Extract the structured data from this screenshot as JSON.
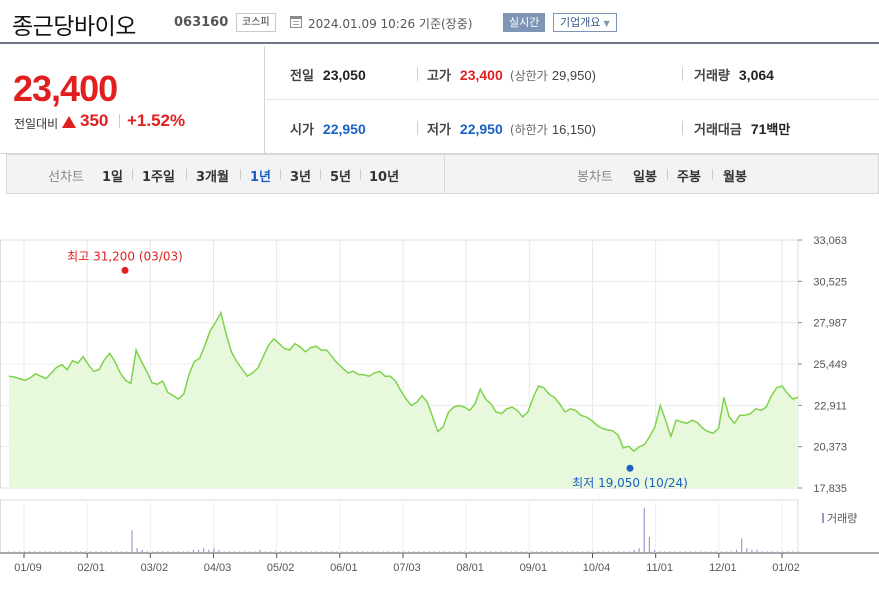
{
  "header": {
    "stock_name": "종근당바이오",
    "stock_code": "063160",
    "market": "코스피",
    "datetime": "2024.01.09 10:26 기준(장중)",
    "realtime_label": "실시간",
    "company_label": "기업개요"
  },
  "price": {
    "current": "23,400",
    "change_label": "전일대비",
    "change_value": "350",
    "change_pct": "+1.52%"
  },
  "stats": {
    "prev_label": "전일",
    "prev_value": "23,050",
    "high_label": "고가",
    "high_value": "23,400",
    "upper_label": "(상한가",
    "upper_value": "29,950)",
    "volume_label": "거래량",
    "volume_value": "3,064",
    "open_label": "시가",
    "open_value": "22,950",
    "low_label": "저가",
    "low_value": "22,950",
    "lower_label": "(하한가",
    "lower_value": "16,150)",
    "amount_label": "거래대금",
    "amount_value": "71",
    "amount_unit": "백만"
  },
  "tabs": {
    "line_label": "선차트",
    "line_periods": [
      "1일",
      "1주일",
      "3개월",
      "1년",
      "3년",
      "5년",
      "10년"
    ],
    "selected": "1년",
    "candle_label": "봉차트",
    "candle_periods": [
      "일봉",
      "주봉",
      "월봉"
    ]
  },
  "colors": {
    "up": "#e11f1f",
    "down": "#1a60c4",
    "line": "#7ed34b",
    "fill": "#e8f8dd",
    "volume": "#a994cf"
  },
  "chart_data": {
    "type": "area",
    "y_ticks": [
      "33,063",
      "30,525",
      "27,987",
      "25,449",
      "22,911",
      "20,373",
      "17,835"
    ],
    "ylim": [
      17835,
      33063
    ],
    "x_ticks": [
      "01/09",
      "02/01",
      "03/02",
      "04/03",
      "05/02",
      "06/01",
      "07/03",
      "08/01",
      "09/01",
      "10/04",
      "11/01",
      "12/01",
      "01/02"
    ],
    "series_price": [
      24700,
      24650,
      24550,
      24450,
      24600,
      24850,
      24700,
      24550,
      24900,
      25250,
      25400,
      25100,
      25650,
      25500,
      25900,
      25400,
      25000,
      25100,
      25700,
      26100,
      25600,
      24900,
      24450,
      24250,
      26300,
      25600,
      25000,
      24300,
      24200,
      24400,
      23700,
      23500,
      23300,
      23600,
      24800,
      25600,
      25800,
      26600,
      27500,
      28000,
      28600,
      27300,
      26200,
      25600,
      25150,
      24700,
      24900,
      25200,
      25900,
      26600,
      27000,
      26700,
      26400,
      26300,
      26700,
      26500,
      26200,
      26450,
      26550,
      26300,
      26300,
      25900,
      25500,
      25200,
      24900,
      25000,
      24800,
      24800,
      24700,
      24900,
      25000,
      24700,
      24700,
      24400,
      23800,
      23300,
      22900,
      23100,
      23500,
      23100,
      22200,
      21300,
      21600,
      22500,
      22800,
      22900,
      22800,
      22600,
      23000,
      23900,
      23300,
      23000,
      22500,
      22400,
      22700,
      22800,
      22600,
      22200,
      22500,
      23400,
      24100,
      24000,
      23600,
      23400,
      23000,
      22500,
      22700,
      22600,
      22300,
      22200,
      22000,
      21700,
      21500,
      21400,
      21350,
      21100,
      20300,
      20400,
      20100,
      20350,
      20500,
      21000,
      21600,
      22900,
      22000,
      21000,
      22000,
      21900,
      21800,
      22000,
      21850,
      21500,
      21300,
      21200,
      21500,
      23400,
      22200,
      21800,
      22300,
      22300,
      22400,
      22700,
      22600,
      22800,
      23500,
      24000,
      24100,
      23650,
      23300,
      23400
    ],
    "high": {
      "label": "최고 31,200 (03/03)",
      "value": 31200
    },
    "low": {
      "label": "최저 19,050 (10/24)",
      "value": 19050
    },
    "volume_label": "거래량",
    "volume_series": [
      1,
      1,
      1,
      1,
      1,
      1,
      1,
      1,
      1,
      1,
      1,
      1,
      1,
      1,
      1,
      1,
      1,
      1,
      1,
      1,
      1,
      1,
      1,
      1,
      14,
      3,
      2,
      1,
      1,
      1,
      1,
      1,
      1,
      1,
      1,
      1,
      2,
      2,
      3,
      2,
      3,
      2,
      1,
      1,
      1,
      1,
      1,
      1,
      1,
      2,
      1,
      1,
      1,
      1,
      1,
      1,
      1,
      1,
      1,
      1,
      1,
      1,
      1,
      1,
      1,
      1,
      1,
      1,
      1,
      1,
      1,
      1,
      1,
      1,
      1,
      1,
      1,
      1,
      1,
      1,
      1,
      1,
      1,
      1,
      1,
      1,
      1,
      1,
      1,
      1,
      1,
      1,
      1,
      1,
      1,
      1,
      1,
      1,
      1,
      1,
      1,
      1,
      1,
      1,
      1,
      1,
      1,
      1,
      1,
      1,
      1,
      1,
      1,
      1,
      1,
      1,
      1,
      1,
      1,
      1,
      1,
      1,
      2,
      3,
      28,
      10,
      2,
      1,
      1,
      1,
      1,
      1,
      1,
      1,
      1,
      1,
      1,
      1,
      1,
      1,
      1,
      1,
      2,
      9,
      3,
      2,
      2,
      1,
      1,
      1,
      1,
      1,
      1,
      1,
      1
    ]
  }
}
